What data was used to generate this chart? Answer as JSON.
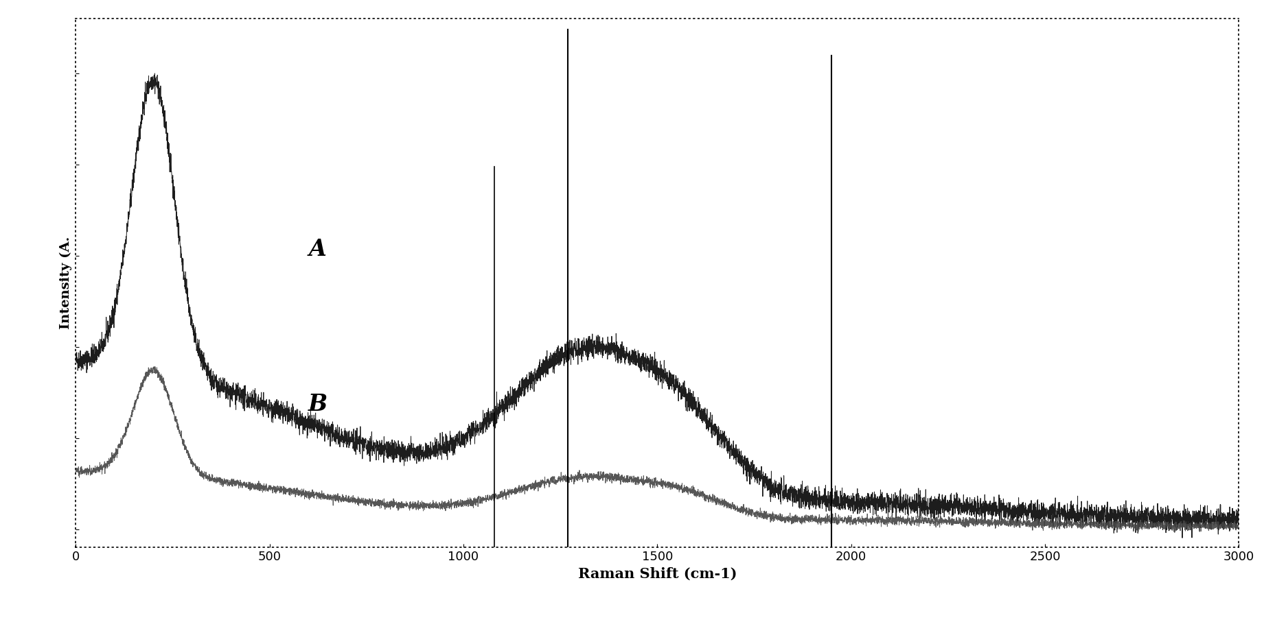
{
  "title": "",
  "xlabel": "Raman Shift (cm-1)",
  "ylabel": "Intensity (A.",
  "xlim": [
    0,
    3000
  ],
  "xticks": [
    0,
    500,
    1000,
    1500,
    2000,
    2500,
    3000
  ],
  "background_color": "#ffffff",
  "border_style": "dotted",
  "vertical_line_1": 1080,
  "vertical_line_2": 1270,
  "vertical_line_3": 1950,
  "label_A": "A",
  "label_B": "B",
  "font_color": "#000000",
  "line_color_A": "#111111",
  "line_color_B": "#444444",
  "noise_seed": 42
}
